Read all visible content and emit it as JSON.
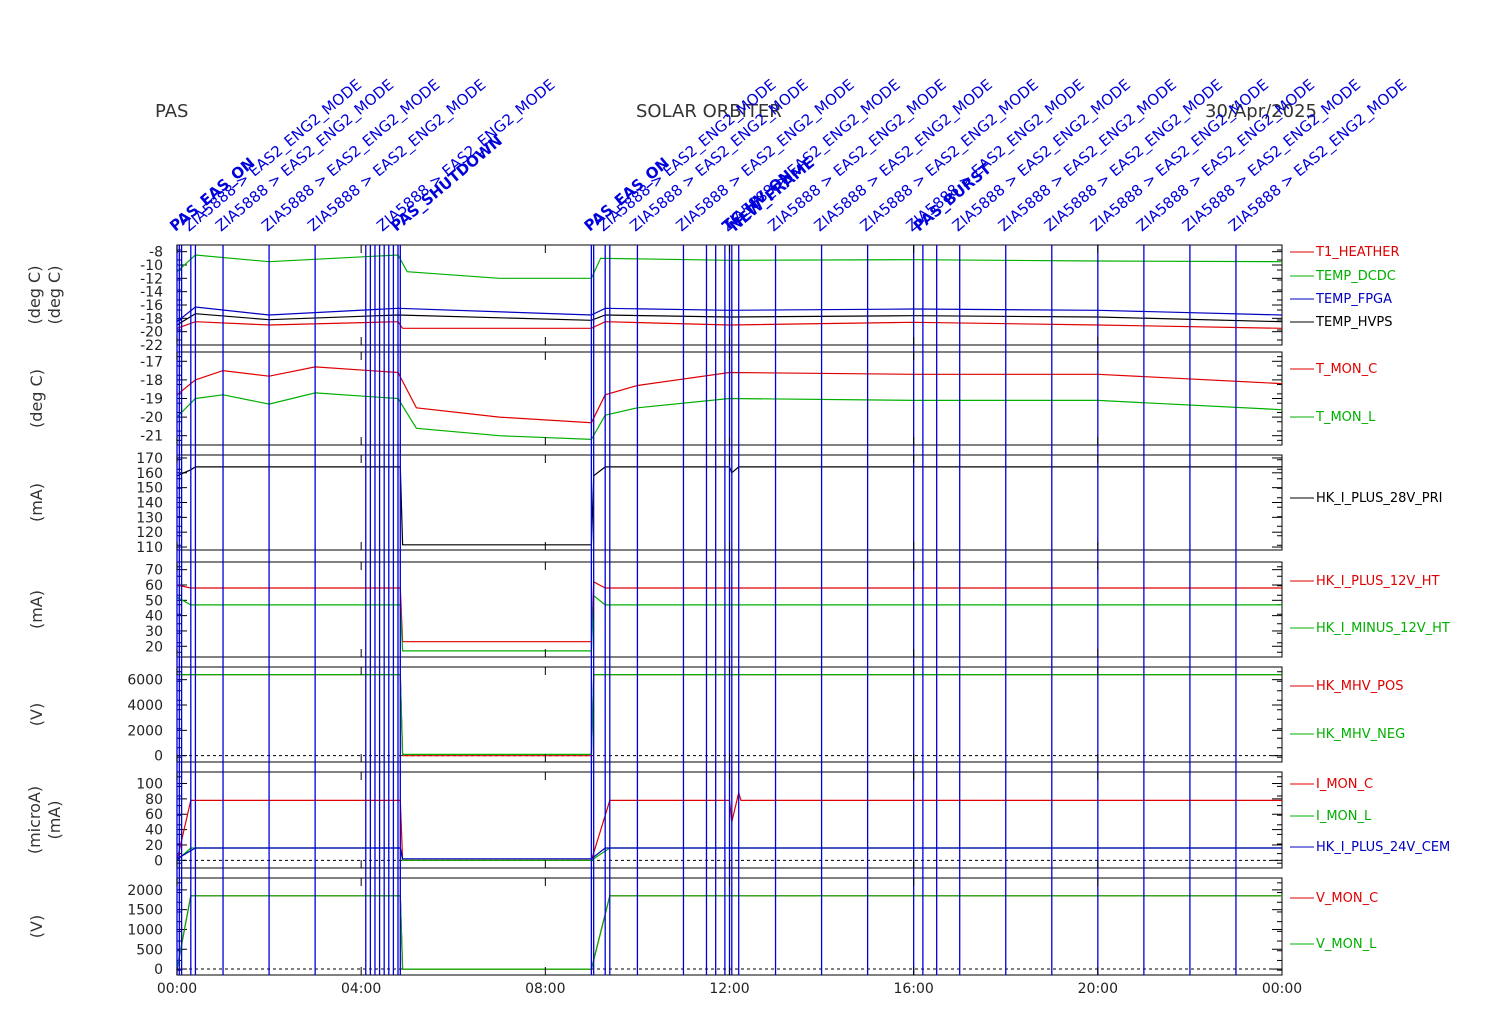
{
  "header": {
    "instrument": "PAS",
    "mission": "SOLAR ORBITER",
    "date": "30/Apr/2025"
  },
  "colors": {
    "red": "#e00000",
    "green": "#00b000",
    "blue": "#0000c0",
    "black": "#000000",
    "marker": "#0000dd"
  },
  "chart_data": {
    "type": "line",
    "x_unit": "hours",
    "x_range": [
      0,
      24
    ],
    "x_ticks": [
      "00:00",
      "04:00",
      "08:00",
      "12:00",
      "16:00",
      "20:00",
      "00:00"
    ],
    "event_marker_hours": [
      0.0,
      0.05,
      0.1,
      0.3,
      0.4,
      1.0,
      2.0,
      3.0,
      4.1,
      4.2,
      4.3,
      4.4,
      4.5,
      4.6,
      4.7,
      4.8,
      4.85,
      9.0,
      9.05,
      9.3,
      9.4,
      10.0,
      11.0,
      11.5,
      11.7,
      11.9,
      12.0,
      12.05,
      12.2,
      13.0,
      14.0,
      15.0,
      16.0,
      16.2,
      16.5,
      17.0,
      18.0,
      19.0,
      20.0,
      21.0,
      22.0,
      23.0
    ],
    "event_labels": [
      "ZIA5888 > EAS2_ENG2_MODE",
      "PAS_EAS_ON",
      "PAS_SHUTDOWN",
      "TC_HV_ON",
      "NEW_FRAME",
      "PAS_BURST"
    ],
    "panels": [
      {
        "ylabel": "(deg C)",
        "ylabel2": "(deg C)",
        "yrange": [
          -22,
          -7
        ],
        "yticks": [
          -8,
          -10,
          -12,
          -14,
          -16,
          -18,
          -20,
          -22
        ],
        "series": [
          {
            "name": "T1_HEATHER",
            "color": "red",
            "points": [
              [
                0,
                -19.5
              ],
              [
                0.4,
                -18.5
              ],
              [
                2,
                -19
              ],
              [
                4.8,
                -18.5
              ],
              [
                4.9,
                -19.5
              ],
              [
                9,
                -19.5
              ],
              [
                9.3,
                -18.5
              ],
              [
                12,
                -19
              ],
              [
                16,
                -18.6
              ],
              [
                20,
                -19
              ],
              [
                24,
                -19.5
              ]
            ]
          },
          {
            "name": "TEMP_DCDC",
            "color": "green",
            "points": [
              [
                0,
                -11
              ],
              [
                0.4,
                -8.5
              ],
              [
                2,
                -9.5
              ],
              [
                4.8,
                -8.5
              ],
              [
                5,
                -11
              ],
              [
                7,
                -12
              ],
              [
                9,
                -12
              ],
              [
                9.2,
                -9
              ],
              [
                12,
                -9.3
              ],
              [
                16,
                -9.2
              ],
              [
                20,
                -9.4
              ],
              [
                24,
                -9.5
              ]
            ]
          },
          {
            "name": "TEMP_FPGA",
            "color": "blue",
            "points": [
              [
                0,
                -18.5
              ],
              [
                0.4,
                -16.3
              ],
              [
                2,
                -17.5
              ],
              [
                4.8,
                -16.5
              ],
              [
                9,
                -17.5
              ],
              [
                9.3,
                -16.5
              ],
              [
                12,
                -16.8
              ],
              [
                16,
                -16.6
              ],
              [
                20,
                -16.8
              ],
              [
                24,
                -17.5
              ]
            ]
          },
          {
            "name": "TEMP_HVPS",
            "color": "black",
            "points": [
              [
                0,
                -19
              ],
              [
                0.4,
                -17.3
              ],
              [
                2,
                -18.2
              ],
              [
                4.8,
                -17.5
              ],
              [
                9,
                -18.3
              ],
              [
                9.3,
                -17.5
              ],
              [
                12,
                -17.8
              ],
              [
                16,
                -17.6
              ],
              [
                20,
                -17.8
              ],
              [
                24,
                -18.5
              ]
            ]
          }
        ]
      },
      {
        "ylabel": "(deg C)",
        "yrange": [
          -21.5,
          -16.5
        ],
        "yticks": [
          -17,
          -18,
          -19,
          -20,
          -21
        ],
        "series": [
          {
            "name": "T_MON_C",
            "color": "red",
            "points": [
              [
                0,
                -18.8
              ],
              [
                0.4,
                -18
              ],
              [
                1,
                -17.5
              ],
              [
                2,
                -17.8
              ],
              [
                3,
                -17.3
              ],
              [
                4.8,
                -17.6
              ],
              [
                5.2,
                -19.5
              ],
              [
                7,
                -20
              ],
              [
                9,
                -20.3
              ],
              [
                9.3,
                -18.8
              ],
              [
                10,
                -18.3
              ],
              [
                12,
                -17.6
              ],
              [
                16,
                -17.7
              ],
              [
                20,
                -17.7
              ],
              [
                24,
                -18.2
              ]
            ]
          },
          {
            "name": "T_MON_L",
            "color": "green",
            "points": [
              [
                0,
                -20
              ],
              [
                0.4,
                -19
              ],
              [
                1,
                -18.8
              ],
              [
                2,
                -19.3
              ],
              [
                3,
                -18.7
              ],
              [
                4.8,
                -19
              ],
              [
                5.2,
                -20.6
              ],
              [
                7,
                -21
              ],
              [
                9,
                -21.2
              ],
              [
                9.3,
                -19.9
              ],
              [
                10,
                -19.5
              ],
              [
                12,
                -19
              ],
              [
                16,
                -19.1
              ],
              [
                20,
                -19.1
              ],
              [
                24,
                -19.6
              ]
            ]
          }
        ]
      },
      {
        "ylabel": "(mA)",
        "yrange": [
          108,
          172
        ],
        "yticks": [
          110,
          120,
          130,
          140,
          150,
          160,
          170
        ],
        "series": [
          {
            "name": "HK_I_PLUS_28V_PRI",
            "color": "black",
            "points": [
              [
                0,
                158
              ],
              [
                0.3,
                162
              ],
              [
                0.4,
                164
              ],
              [
                4.85,
                164
              ],
              [
                4.9,
                111.5
              ],
              [
                9,
                111.5
              ],
              [
                9.05,
                158
              ],
              [
                9.3,
                164
              ],
              [
                12,
                164
              ],
              [
                12.05,
                160
              ],
              [
                12.2,
                164
              ],
              [
                24,
                164
              ]
            ]
          }
        ]
      },
      {
        "ylabel": "(mA)",
        "yrange": [
          13,
          75
        ],
        "yticks": [
          20,
          30,
          40,
          50,
          60,
          70
        ],
        "series": [
          {
            "name": "HK_I_PLUS_12V_HT",
            "color": "red",
            "points": [
              [
                0,
                60
              ],
              [
                0.3,
                58
              ],
              [
                4.85,
                58
              ],
              [
                4.9,
                23
              ],
              [
                9,
                23
              ],
              [
                9.05,
                62
              ],
              [
                9.3,
                58
              ],
              [
                24,
                58
              ]
            ]
          },
          {
            "name": "HK_I_MINUS_12V_HT",
            "color": "green",
            "points": [
              [
                0,
                52
              ],
              [
                0.3,
                47
              ],
              [
                4.85,
                47
              ],
              [
                4.9,
                17
              ],
              [
                9,
                17
              ],
              [
                9.05,
                53
              ],
              [
                9.3,
                47
              ],
              [
                24,
                47
              ]
            ]
          }
        ]
      },
      {
        "ylabel": "(V)",
        "yrange": [
          -500,
          7000
        ],
        "yticks": [
          0,
          2000,
          4000,
          6000
        ],
        "baseline": 0,
        "series": [
          {
            "name": "HK_MHV_POS",
            "color": "red",
            "points": [
              [
                0,
                6400
              ],
              [
                4.85,
                6400
              ],
              [
                4.9,
                0
              ],
              [
                9,
                0
              ],
              [
                9.05,
                6400
              ],
              [
                24,
                6400
              ]
            ]
          },
          {
            "name": "HK_MHV_NEG",
            "color": "green",
            "points": [
              [
                0,
                6400
              ],
              [
                4.85,
                6400
              ],
              [
                4.9,
                100
              ],
              [
                9,
                100
              ],
              [
                9.05,
                6400
              ],
              [
                24,
                6400
              ]
            ]
          }
        ]
      },
      {
        "ylabel": "(microA)",
        "ylabel2": "(mA)",
        "yrange": [
          -10,
          115
        ],
        "yticks": [
          0,
          20,
          40,
          60,
          80,
          100
        ],
        "baseline": 0,
        "series": [
          {
            "name": "I_MON_C",
            "color": "red",
            "points": [
              [
                0,
                0
              ],
              [
                0.3,
                78
              ],
              [
                4.85,
                78
              ],
              [
                4.9,
                0
              ],
              [
                9,
                0
              ],
              [
                9.4,
                78
              ],
              [
                12,
                78
              ],
              [
                12.05,
                50
              ],
              [
                12.2,
                88
              ],
              [
                12.25,
                78
              ],
              [
                24,
                78
              ]
            ]
          },
          {
            "name": "I_MON_L",
            "color": "green",
            "points": [
              [
                0,
                0
              ],
              [
                0.3,
                16
              ],
              [
                4.85,
                16
              ],
              [
                4.9,
                0
              ],
              [
                9,
                0
              ],
              [
                9.4,
                16
              ],
              [
                24,
                16
              ]
            ]
          },
          {
            "name": "HK_I_PLUS_24V_CEM",
            "color": "blue",
            "points": [
              [
                0,
                2
              ],
              [
                0.4,
                16
              ],
              [
                4.85,
                16
              ],
              [
                4.9,
                2
              ],
              [
                9,
                2
              ],
              [
                9.3,
                16
              ],
              [
                24,
                16
              ]
            ]
          }
        ]
      },
      {
        "ylabel": "(V)",
        "yrange": [
          -150,
          2300
        ],
        "yticks": [
          0,
          500,
          1000,
          1500,
          2000
        ],
        "baseline": 0,
        "series": [
          {
            "name": "V_MON_C",
            "color": "red",
            "points": [
              [
                0,
                0
              ],
              [
                0.3,
                1850
              ],
              [
                4.85,
                1850
              ],
              [
                4.9,
                0
              ],
              [
                9,
                0
              ],
              [
                9.4,
                1850
              ],
              [
                24,
                1850
              ]
            ]
          },
          {
            "name": "V_MON_L",
            "color": "green",
            "points": [
              [
                0,
                0
              ],
              [
                0.3,
                1850
              ],
              [
                4.85,
                1850
              ],
              [
                4.9,
                0
              ],
              [
                9,
                0
              ],
              [
                9.4,
                1850
              ],
              [
                24,
                1850
              ]
            ]
          }
        ]
      }
    ]
  }
}
